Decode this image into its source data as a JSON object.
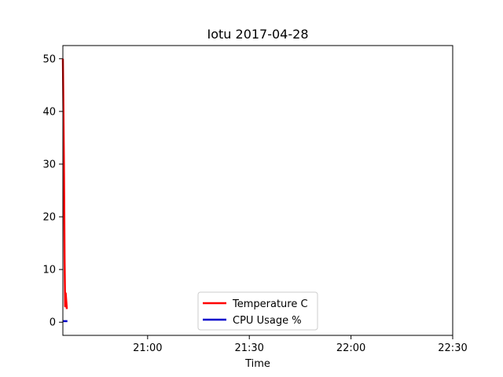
{
  "chart_data": {
    "type": "line",
    "title": "Iotu 2017-04-28",
    "xlabel": "Time",
    "ylabel": "",
    "x_ticks": [
      "21:00",
      "21:30",
      "22:00",
      "22:30"
    ],
    "y_ticks": [
      "0",
      "10",
      "20",
      "30",
      "40",
      "50"
    ],
    "xlim": [
      "20:35",
      "22:30"
    ],
    "ylim": [
      -2.5,
      52.5
    ],
    "grid": false,
    "legend_position": "lower-center",
    "series": [
      {
        "name": "Temperature C",
        "color": "#ff0000",
        "x": [
          "20:35:00",
          "20:35:10",
          "20:35:20",
          "20:35:30",
          "20:35:40",
          "20:35:50",
          "20:36:00",
          "20:36:10"
        ],
        "y": [
          50,
          40,
          28,
          12,
          3,
          5.5,
          4,
          2.5
        ]
      },
      {
        "name": "CPU Usage %",
        "color": "#0000cc",
        "x": [
          "20:35:00",
          "20:35:30",
          "20:36:00",
          "20:36:20"
        ],
        "y": [
          0.2,
          0.2,
          0.2,
          0.2
        ]
      }
    ]
  }
}
